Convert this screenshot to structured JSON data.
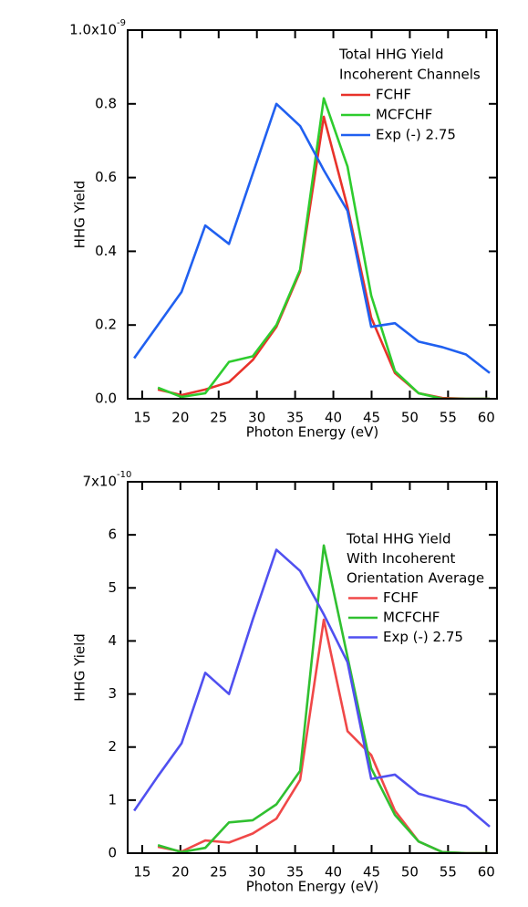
{
  "chart_data": [
    {
      "type": "line",
      "x_label": "Photon Energy (eV)",
      "y_label": "HHG Yield",
      "legend_title": [
        "Total HHG Yield",
        "Incoherent Channels"
      ],
      "y_exponent": "-9",
      "xlim": [
        13.1,
        61.4
      ],
      "ylim": [
        0,
        1.0
      ],
      "xticks": [
        15,
        20,
        25,
        30,
        35,
        40,
        45,
        50,
        55,
        60
      ],
      "yticks": [
        {
          "value": 0,
          "label": "0.0"
        },
        0.2,
        0.4,
        0.6,
        0.8,
        {
          "value": 1.0,
          "label": "1.0x10"
        }
      ],
      "series": [
        {
          "name": "FCHF",
          "color": "#e8322a",
          "x": [
            17.05,
            20.15,
            23.25,
            26.35,
            29.45,
            32.55,
            35.65,
            38.75,
            41.85,
            44.95,
            48.05,
            51.15,
            54.25,
            57.35,
            60.45
          ],
          "values": [
            0.025,
            0.01,
            0.025,
            0.045,
            0.105,
            0.195,
            0.345,
            0.765,
            0.52,
            0.22,
            0.07,
            0.015,
            0.002,
            0,
            0
          ]
        },
        {
          "name": "MCFCHF",
          "color": "#2ecc2e",
          "x": [
            17.05,
            20.15,
            23.25,
            26.35,
            29.45,
            32.55,
            35.65,
            38.75,
            41.85,
            44.95,
            48.05,
            51.15,
            54.25,
            57.35,
            60.45
          ],
          "values": [
            0.03,
            0.005,
            0.015,
            0.1,
            0.115,
            0.2,
            0.35,
            0.815,
            0.63,
            0.28,
            0.075,
            0.015,
            0,
            0,
            0
          ]
        },
        {
          "name": "Exp (-) 2.75",
          "color": "#2060f0",
          "x": [
            13.95,
            17.05,
            20.15,
            23.25,
            26.35,
            29.45,
            32.55,
            35.65,
            38.75,
            41.85,
            44.95,
            48.05,
            51.15,
            54.25,
            57.35,
            60.45
          ],
          "values": [
            0.11,
            0.2,
            0.29,
            0.47,
            0.42,
            0.61,
            0.8,
            0.74,
            0.62,
            0.51,
            0.195,
            0.205,
            0.155,
            0.14,
            0.12,
            0.07
          ]
        }
      ]
    },
    {
      "type": "line",
      "x_label": "Photon Energy (eV)",
      "y_label": "HHG Yield",
      "legend_title": [
        "Total HHG Yield",
        "With Incoherent",
        "Orientation Average"
      ],
      "y_exponent": "-10",
      "xlim": [
        13.1,
        61.4
      ],
      "ylim": [
        0,
        7
      ],
      "xticks": [
        15,
        20,
        25,
        30,
        35,
        40,
        45,
        50,
        55,
        60
      ],
      "yticks": [
        0,
        1,
        2,
        3,
        4,
        5,
        6,
        {
          "value": 7,
          "label": "7x10"
        }
      ],
      "series": [
        {
          "name": "FCHF",
          "color": "#f04848",
          "x": [
            17.05,
            20.15,
            23.25,
            26.35,
            29.45,
            32.55,
            35.65,
            38.75,
            41.85,
            44.95,
            48.05,
            51.15,
            54.25,
            57.35,
            60.45
          ],
          "values": [
            0.12,
            0.03,
            0.24,
            0.2,
            0.37,
            0.65,
            1.38,
            4.4,
            2.3,
            1.85,
            0.8,
            0.22,
            0.02,
            0,
            0
          ]
        },
        {
          "name": "MCFCHF",
          "color": "#30c030",
          "x": [
            17.05,
            20.15,
            23.25,
            26.35,
            29.45,
            32.55,
            35.65,
            38.75,
            41.85,
            44.95,
            48.05,
            51.15,
            54.25,
            57.35,
            60.45
          ],
          "values": [
            0.15,
            0.02,
            0.1,
            0.58,
            0.62,
            0.92,
            1.55,
            5.8,
            3.7,
            1.6,
            0.72,
            0.22,
            0.02,
            0,
            0
          ]
        },
        {
          "name": "Exp (-) 2.75",
          "color": "#5050f0",
          "x": [
            13.95,
            17.05,
            20.15,
            23.25,
            26.35,
            29.45,
            32.55,
            35.65,
            38.75,
            41.85,
            44.95,
            48.05,
            51.15,
            54.25,
            57.35,
            60.45
          ],
          "values": [
            0.8,
            1.45,
            2.07,
            3.4,
            3.0,
            4.4,
            5.72,
            5.32,
            4.5,
            3.6,
            1.4,
            1.48,
            1.12,
            1.0,
            0.88,
            0.5
          ]
        }
      ]
    }
  ]
}
